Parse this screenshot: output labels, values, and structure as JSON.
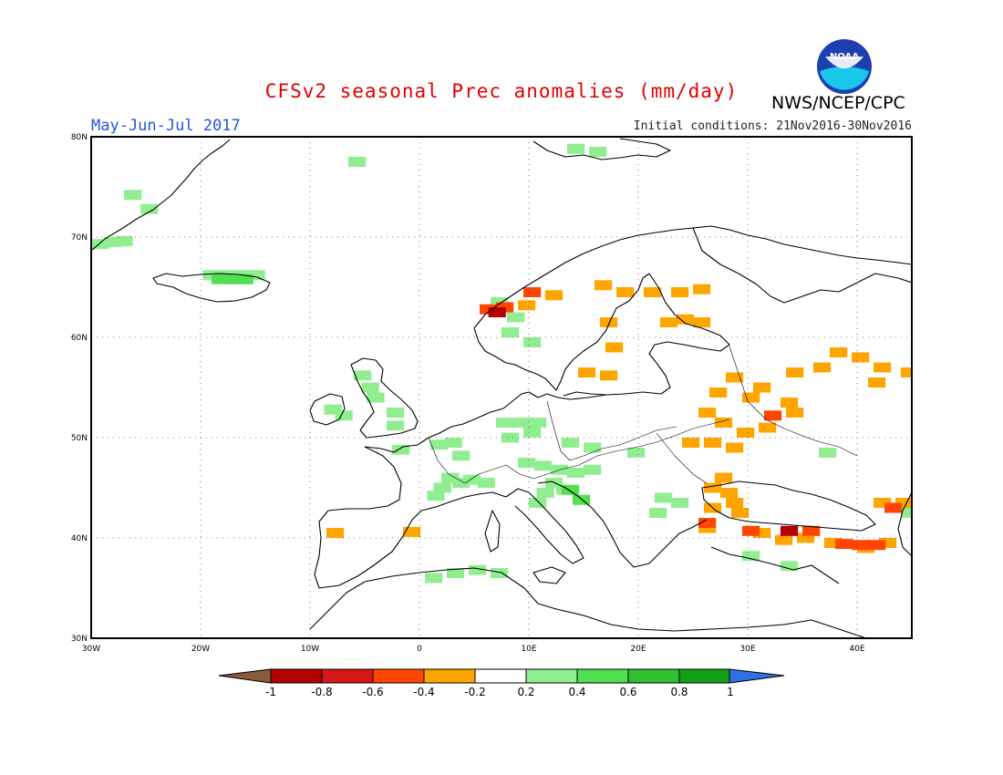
{
  "header": {
    "title": "CFSv2 seasonal Prec anomalies (mm/day)",
    "period": "May-Jun-Jul 2017",
    "initial_conditions": "Initial conditions: 21Nov2016-30Nov2016",
    "agency": "NWS/NCEP/CPC",
    "logo_text": "NOAA"
  },
  "map": {
    "region": "Europe",
    "projection": "equirectangular",
    "lon_range": [
      -30,
      45
    ],
    "lat_range": [
      30,
      80
    ],
    "lat_labels": [
      "80N",
      "70N",
      "60N",
      "50N",
      "40N",
      "30N"
    ],
    "lon_labels": [
      "30W",
      "20W",
      "10W",
      "0",
      "10E",
      "20E",
      "30E",
      "40E"
    ],
    "grid": "dotted"
  },
  "legend": {
    "ticks": [
      "-1",
      "-0.8",
      "-0.6",
      "-0.4",
      "-0.2",
      "0.2",
      "0.4",
      "0.6",
      "0.8",
      "1"
    ],
    "colors": [
      "#8b5a3c",
      "#b40000",
      "#d81818",
      "#ff4500",
      "#ffa500",
      "#ffffff",
      "#90ee90",
      "#50e050",
      "#30c030",
      "#14a014",
      "#3070e0"
    ]
  },
  "anomalies": {
    "positive_light": [
      [
        -29.5,
        69.3
      ],
      [
        -28.3,
        69.5
      ],
      [
        -27.3,
        69.6
      ],
      [
        -26.5,
        74.2
      ],
      [
        -25.0,
        72.8
      ],
      [
        -19.3,
        66.2
      ],
      [
        -18.2,
        66.2
      ],
      [
        -17.2,
        66.2
      ],
      [
        -16.2,
        66.2
      ],
      [
        -15.2,
        66.2
      ],
      [
        -5.5,
        56.2
      ],
      [
        -4.8,
        55.0
      ],
      [
        -4.3,
        54.0
      ],
      [
        -8.2,
        52.8
      ],
      [
        -7.2,
        52.2
      ],
      [
        -2.5,
        52.5
      ],
      [
        -2.5,
        51.2
      ],
      [
        -2.0,
        48.8
      ],
      [
        1.5,
        49.3
      ],
      [
        2.8,
        49.5
      ],
      [
        3.5,
        48.2
      ],
      [
        2.5,
        46.0
      ],
      [
        3.5,
        45.5
      ],
      [
        4.5,
        45.8
      ],
      [
        5.8,
        45.5
      ],
      [
        1.8,
        45.0
      ],
      [
        1.2,
        44.2
      ],
      [
        7.5,
        51.5
      ],
      [
        9.0,
        51.5
      ],
      [
        10.5,
        51.5
      ],
      [
        8.0,
        50.0
      ],
      [
        10.0,
        50.5
      ],
      [
        13.5,
        49.5
      ],
      [
        15.5,
        49.0
      ],
      [
        9.5,
        47.5
      ],
      [
        11.0,
        47.2
      ],
      [
        12.5,
        46.8
      ],
      [
        14.0,
        46.5
      ],
      [
        15.5,
        46.8
      ],
      [
        19.5,
        48.5
      ],
      [
        12.0,
        45.5
      ],
      [
        11.2,
        44.5
      ],
      [
        13.0,
        44.8
      ],
      [
        10.5,
        43.5
      ],
      [
        22.0,
        44.0
      ],
      [
        23.5,
        43.5
      ],
      [
        21.5,
        42.5
      ],
      [
        7.0,
        63.5
      ],
      [
        8.5,
        62.0
      ],
      [
        8.0,
        60.5
      ],
      [
        10.0,
        59.5
      ],
      [
        -6.0,
        77.5
      ],
      [
        14.0,
        78.8
      ],
      [
        16.0,
        78.5
      ],
      [
        1.0,
        36.0
      ],
      [
        3.0,
        36.5
      ],
      [
        5.0,
        36.8
      ],
      [
        7.0,
        36.5
      ],
      [
        37.0,
        48.5
      ],
      [
        44.5,
        42.5
      ],
      [
        30.0,
        38.2
      ],
      [
        33.5,
        37.2
      ]
    ],
    "positive_mid": [
      [
        13.5,
        44.8
      ],
      [
        14.5,
        43.8
      ],
      [
        -18.5,
        65.8
      ],
      [
        -17.3,
        65.8
      ],
      [
        -16.3,
        65.8
      ]
    ],
    "negative_light": [
      [
        12.0,
        64.2
      ],
      [
        9.5,
        63.2
      ],
      [
        16.5,
        65.2
      ],
      [
        18.5,
        64.5
      ],
      [
        21.0,
        64.5
      ],
      [
        23.5,
        64.5
      ],
      [
        25.5,
        64.8
      ],
      [
        17.0,
        61.5
      ],
      [
        22.5,
        61.5
      ],
      [
        24.0,
        61.8
      ],
      [
        25.5,
        61.5
      ],
      [
        17.5,
        59.0
      ],
      [
        15.0,
        56.5
      ],
      [
        17.0,
        56.2
      ],
      [
        28.5,
        56.0
      ],
      [
        31.0,
        55.0
      ],
      [
        34.0,
        56.5
      ],
      [
        36.5,
        57.0
      ],
      [
        38.0,
        58.5
      ],
      [
        40.0,
        58.0
      ],
      [
        42.0,
        57.0
      ],
      [
        44.5,
        56.5
      ],
      [
        41.5,
        55.5
      ],
      [
        27.0,
        54.5
      ],
      [
        30.0,
        54.0
      ],
      [
        33.5,
        53.5
      ],
      [
        34.0,
        52.5
      ],
      [
        26.0,
        52.5
      ],
      [
        27.5,
        51.5
      ],
      [
        29.5,
        50.5
      ],
      [
        31.5,
        51.0
      ],
      [
        24.5,
        49.5
      ],
      [
        26.5,
        49.5
      ],
      [
        28.5,
        49.0
      ],
      [
        27.5,
        46.0
      ],
      [
        26.5,
        45.0
      ],
      [
        28.0,
        44.5
      ],
      [
        28.5,
        43.5
      ],
      [
        26.5,
        43.0
      ],
      [
        29.0,
        42.5
      ],
      [
        26.0,
        41.0
      ],
      [
        42.0,
        43.5
      ],
      [
        44.0,
        43.5
      ],
      [
        31.0,
        40.5
      ],
      [
        33.0,
        39.8
      ],
      [
        35.0,
        40.0
      ],
      [
        37.5,
        39.5
      ],
      [
        40.5,
        39.0
      ],
      [
        42.5,
        39.5
      ],
      [
        -8.0,
        40.5
      ],
      [
        -1.0,
        40.6
      ]
    ],
    "negative_mid": [
      [
        6.0,
        62.8
      ],
      [
        7.5,
        63.0
      ],
      [
        10.0,
        64.5
      ],
      [
        32.0,
        52.2
      ],
      [
        26.0,
        41.5
      ],
      [
        43.0,
        43.0
      ],
      [
        30.0,
        40.7
      ],
      [
        35.5,
        40.7
      ],
      [
        38.5,
        39.4
      ],
      [
        40.0,
        39.3
      ],
      [
        41.5,
        39.3
      ]
    ],
    "negative_strong": [
      [
        6.8,
        62.5
      ],
      [
        33.5,
        40.7
      ]
    ]
  }
}
